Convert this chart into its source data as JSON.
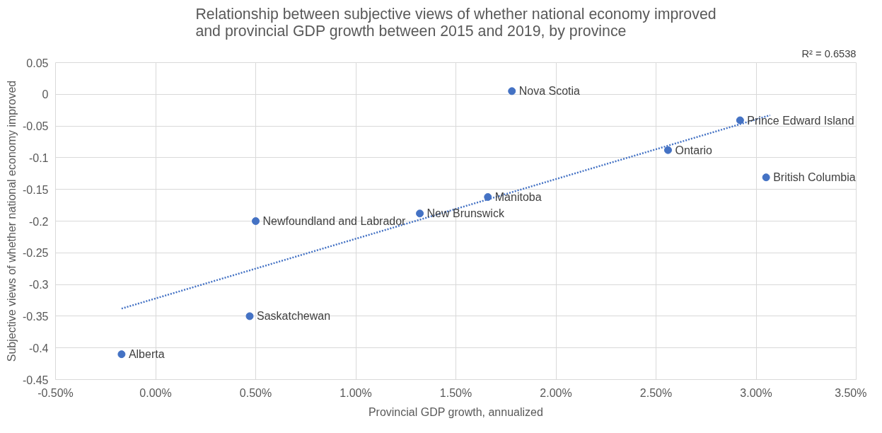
{
  "chart_data": {
    "type": "scatter",
    "title": "Relationship between subjective views of whether national economy improved\nand provincial GDP growth between 2015 and 2019, by province",
    "xlabel": "Provincial GDP growth, annualized",
    "ylabel": "Subjective views of whether national economy improved",
    "x": [
      1.78,
      2.92,
      2.56,
      3.05,
      1.66,
      1.32,
      0.5,
      0.47,
      -0.17
    ],
    "series": [
      {
        "color": "#4472c4",
        "values": [
          0.005,
          -0.041,
          -0.088,
          -0.131,
          -0.162,
          -0.188,
          -0.2,
          -0.35,
          -0.41
        ]
      },
      {
        "type": "line",
        "marker": "none",
        "color": "#4472c4",
        "x": [
          -0.17,
          3.07
        ],
        "values": [
          -0.338,
          -0.033
        ]
      }
    ],
    "xlim": [
      -0.5,
      3.5
    ],
    "ylim": [
      -0.45,
      0.05
    ],
    "xticks": [
      {
        "value": -0.5,
        "label": "-0.50%"
      },
      {
        "value": 0,
        "label": "0.00%"
      },
      {
        "value": 0.5,
        "label": "0.50%"
      },
      {
        "value": 1,
        "label": "1.00%"
      },
      {
        "value": 1.5,
        "label": "1.50%"
      },
      {
        "value": 2,
        "label": "2.00%"
      },
      {
        "value": 2.5,
        "label": "2.50%"
      },
      {
        "value": 3,
        "label": "3.00%"
      },
      {
        "value": 3.5,
        "label": "3.50%"
      }
    ],
    "yticks": [
      0.05,
      0,
      -0.05,
      -0.1,
      -0.15,
      -0.2,
      -0.25,
      -0.3,
      -0.35,
      -0.4,
      -0.45
    ],
    "grid": true,
    "marker": "circle",
    "line_style": "dotted",
    "annotations": [
      "R² = 0.6538",
      {
        "text": "Nova Scotia",
        "x": 1.78,
        "y": 0.005
      },
      {
        "text": "Prince Edward Island",
        "x": 2.92,
        "y": -0.041
      },
      {
        "text": "Ontario",
        "x": 2.56,
        "y": -0.088
      },
      {
        "text": "British Columbia",
        "x": 3.05,
        "y": -0.131
      },
      {
        "text": "Manitoba",
        "x": 1.66,
        "y": -0.162
      },
      {
        "text": "New Brunswick",
        "x": 1.32,
        "y": -0.188
      },
      {
        "text": "Newfoundland and Labrador",
        "x": 0.5,
        "y": -0.2
      },
      {
        "text": "Saskatchewan",
        "x": 0.47,
        "y": -0.35
      },
      {
        "text": "Alberta",
        "x": -0.17,
        "y": -0.41
      }
    ]
  }
}
